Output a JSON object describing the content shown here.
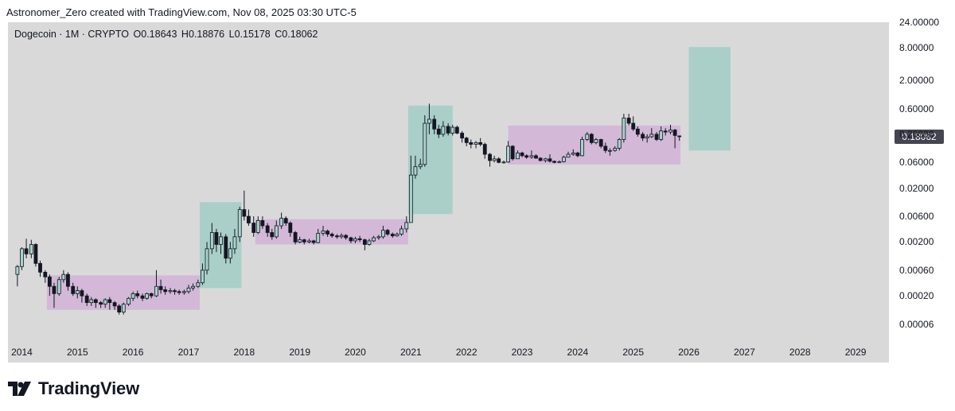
{
  "header": {
    "text": "Astronomer_Zero created with TradingView.com, Nov 08, 2025 03:30 UTC-5"
  },
  "legend": {
    "symbol": "Dogecoin · 1M · CRYPTO",
    "open": "O0.18643",
    "high": "H0.18876",
    "low": "L0.15178",
    "close": "C0.18062"
  },
  "brand": {
    "name": "TradingView"
  },
  "colors": {
    "background": "#d9d9d9",
    "accumulation_box": "#d3b8d8",
    "expansion_box": "#a9cfc8",
    "candle_up": "#a8d3cc",
    "candle_down": "#131722",
    "price_badge": "#434651"
  },
  "chart_data": {
    "type": "candlestick",
    "scale": "log",
    "ylim": [
      3e-05,
      24
    ],
    "y_ticks": [
      "24.00000",
      "8.00000",
      "2.00000",
      "0.60000",
      "0.20000",
      "0.06000",
      "0.02000",
      "0.00600",
      "0.00200",
      "0.00060",
      "0.00020",
      "0.00006"
    ],
    "x_ticks": [
      "2014",
      "2015",
      "2016",
      "2017",
      "2018",
      "2019",
      "2020",
      "2021",
      "2022",
      "2023",
      "2024",
      "2025",
      "2026",
      "2027",
      "2028",
      "2029"
    ],
    "xlim": [
      2013.75,
      2029.6
    ],
    "last_price": "0.18062",
    "zones": [
      {
        "kind": "accumulation",
        "x": [
          2014.45,
          2017.2
        ],
        "y": [
          0.00011,
          0.00048
        ]
      },
      {
        "kind": "expansion",
        "x": [
          2017.2,
          2017.95
        ],
        "y": [
          0.00028,
          0.011
        ]
      },
      {
        "kind": "accumulation",
        "x": [
          2018.2,
          2020.95
        ],
        "y": [
          0.0018,
          0.0053
        ]
      },
      {
        "kind": "expansion",
        "x": [
          2020.95,
          2021.75
        ],
        "y": [
          0.0066,
          0.68
        ]
      },
      {
        "kind": "accumulation",
        "x": [
          2022.75,
          2025.85
        ],
        "y": [
          0.055,
          0.29
        ]
      },
      {
        "kind": "expansion",
        "x": [
          2026.0,
          2026.75
        ],
        "y": [
          0.1,
          8.3
        ]
      }
    ],
    "candles": [
      [
        2013.92,
        0.0005,
        0.0007,
        0.00075,
        0.0003
      ],
      [
        2014.0,
        0.0007,
        0.0015,
        0.0016,
        0.0006
      ],
      [
        2014.08,
        0.0015,
        0.0012,
        0.0023,
        0.001
      ],
      [
        2014.17,
        0.0012,
        0.0018,
        0.0022,
        0.001
      ],
      [
        2014.25,
        0.0018,
        0.0008,
        0.0019,
        0.0007
      ],
      [
        2014.33,
        0.0008,
        0.00055,
        0.0009,
        0.00045
      ],
      [
        2014.42,
        0.00055,
        0.00045,
        0.0006,
        0.00035
      ],
      [
        2014.5,
        0.00045,
        0.0003,
        0.0005,
        0.0002
      ],
      [
        2014.58,
        0.0003,
        0.00022,
        0.00035,
        0.00012
      ],
      [
        2014.67,
        0.00022,
        0.0004,
        0.00045,
        0.0002
      ],
      [
        2014.75,
        0.0004,
        0.0005,
        0.0006,
        0.00035
      ],
      [
        2014.83,
        0.0005,
        0.0003,
        0.00055,
        0.00025
      ],
      [
        2014.92,
        0.0003,
        0.00022,
        0.00035,
        0.0002
      ],
      [
        2015.0,
        0.00022,
        0.00025,
        0.0003,
        0.00018
      ],
      [
        2015.08,
        0.00025,
        0.0002,
        0.00027,
        0.00015
      ],
      [
        2015.17,
        0.0002,
        0.00015,
        0.00022,
        0.00013
      ],
      [
        2015.25,
        0.00015,
        0.00017,
        0.00019,
        0.00013
      ],
      [
        2015.33,
        0.00017,
        0.00015,
        0.00018,
        0.00012
      ],
      [
        2015.42,
        0.00015,
        0.00014,
        0.00016,
        0.00012
      ],
      [
        2015.5,
        0.00014,
        0.00017,
        0.00018,
        0.00012
      ],
      [
        2015.58,
        0.00017,
        0.00015,
        0.00019,
        0.00011
      ],
      [
        2015.67,
        0.00015,
        0.00013,
        0.00016,
        0.00011
      ],
      [
        2015.75,
        0.00013,
        0.0001,
        0.00014,
        9e-05
      ],
      [
        2015.83,
        0.0001,
        0.00014,
        0.00015,
        9e-05
      ],
      [
        2015.92,
        0.00014,
        0.00018,
        0.00019,
        0.00013
      ],
      [
        2016.0,
        0.00018,
        0.00022,
        0.00024,
        0.00016
      ],
      [
        2016.08,
        0.00022,
        0.0002,
        0.00025,
        0.00018
      ],
      [
        2016.17,
        0.0002,
        0.00018,
        0.00022,
        0.00016
      ],
      [
        2016.25,
        0.00018,
        0.00022,
        0.00023,
        0.00017
      ],
      [
        2016.33,
        0.00022,
        0.0002,
        0.00023,
        0.00018
      ],
      [
        2016.42,
        0.0002,
        0.0003,
        0.0006,
        0.00019
      ],
      [
        2016.5,
        0.0003,
        0.00026,
        0.0004,
        0.00022
      ],
      [
        2016.58,
        0.00026,
        0.00024,
        0.0003,
        0.00021
      ],
      [
        2016.67,
        0.00024,
        0.00025,
        0.00028,
        0.00022
      ],
      [
        2016.75,
        0.00025,
        0.00024,
        0.00027,
        0.00021
      ],
      [
        2016.83,
        0.00024,
        0.00023,
        0.00026,
        0.00021
      ],
      [
        2016.92,
        0.00023,
        0.00024,
        0.00026,
        0.00021
      ],
      [
        2017.0,
        0.00024,
        0.00028,
        0.00032,
        0.00022
      ],
      [
        2017.08,
        0.00028,
        0.0003,
        0.00034,
        0.00025
      ],
      [
        2017.17,
        0.0003,
        0.00035,
        0.0004,
        0.00028
      ],
      [
        2017.25,
        0.00035,
        0.0006,
        0.0008,
        0.00032
      ],
      [
        2017.33,
        0.0006,
        0.0015,
        0.002,
        0.0005
      ],
      [
        2017.42,
        0.0015,
        0.003,
        0.0045,
        0.0012
      ],
      [
        2017.5,
        0.003,
        0.0018,
        0.0035,
        0.0013
      ],
      [
        2017.58,
        0.0018,
        0.0025,
        0.003,
        0.0012
      ],
      [
        2017.67,
        0.0025,
        0.001,
        0.0028,
        0.0008
      ],
      [
        2017.75,
        0.001,
        0.0015,
        0.002,
        0.0008
      ],
      [
        2017.83,
        0.0015,
        0.0025,
        0.0035,
        0.0012
      ],
      [
        2017.92,
        0.0025,
        0.008,
        0.009,
        0.002
      ],
      [
        2018.0,
        0.008,
        0.006,
        0.018,
        0.005
      ],
      [
        2018.08,
        0.006,
        0.0045,
        0.008,
        0.004
      ],
      [
        2018.17,
        0.0045,
        0.003,
        0.006,
        0.0025
      ],
      [
        2018.25,
        0.003,
        0.005,
        0.006,
        0.0028
      ],
      [
        2018.33,
        0.005,
        0.004,
        0.006,
        0.0035
      ],
      [
        2018.42,
        0.004,
        0.003,
        0.0045,
        0.0025
      ],
      [
        2018.5,
        0.003,
        0.0025,
        0.0035,
        0.0022
      ],
      [
        2018.58,
        0.0025,
        0.004,
        0.005,
        0.0023
      ],
      [
        2018.67,
        0.004,
        0.0055,
        0.007,
        0.0035
      ],
      [
        2018.75,
        0.0055,
        0.0045,
        0.006,
        0.004
      ],
      [
        2018.83,
        0.0045,
        0.003,
        0.0048,
        0.0025
      ],
      [
        2018.92,
        0.003,
        0.002,
        0.0032,
        0.0018
      ],
      [
        2019.0,
        0.002,
        0.0022,
        0.0025,
        0.0019
      ],
      [
        2019.08,
        0.0022,
        0.002,
        0.0023,
        0.0018
      ],
      [
        2019.17,
        0.002,
        0.0021,
        0.0023,
        0.0019
      ],
      [
        2019.25,
        0.0021,
        0.00195,
        0.0022,
        0.0018
      ],
      [
        2019.33,
        0.00195,
        0.0029,
        0.0035,
        0.0019
      ],
      [
        2019.42,
        0.0029,
        0.0032,
        0.004,
        0.0026
      ],
      [
        2019.5,
        0.0032,
        0.0028,
        0.0034,
        0.0025
      ],
      [
        2019.58,
        0.0028,
        0.0026,
        0.003,
        0.0024
      ],
      [
        2019.67,
        0.0026,
        0.0025,
        0.0028,
        0.0023
      ],
      [
        2019.75,
        0.0025,
        0.00265,
        0.0029,
        0.0023
      ],
      [
        2019.83,
        0.00265,
        0.0024,
        0.0028,
        0.0022
      ],
      [
        2019.92,
        0.0024,
        0.0021,
        0.0025,
        0.0019
      ],
      [
        2020.0,
        0.0021,
        0.0023,
        0.0025,
        0.0019
      ],
      [
        2020.08,
        0.0023,
        0.0022,
        0.0026,
        0.002
      ],
      [
        2020.17,
        0.0022,
        0.0018,
        0.0023,
        0.0014
      ],
      [
        2020.25,
        0.0018,
        0.0021,
        0.0023,
        0.0017
      ],
      [
        2020.33,
        0.0021,
        0.0024,
        0.0026,
        0.002
      ],
      [
        2020.42,
        0.0024,
        0.0025,
        0.0027,
        0.0022
      ],
      [
        2020.5,
        0.0025,
        0.0033,
        0.004,
        0.0023
      ],
      [
        2020.58,
        0.0033,
        0.0028,
        0.0035,
        0.0026
      ],
      [
        2020.67,
        0.0028,
        0.0026,
        0.003,
        0.0024
      ],
      [
        2020.75,
        0.0026,
        0.0028,
        0.003,
        0.0025
      ],
      [
        2020.83,
        0.0028,
        0.0035,
        0.004,
        0.0026
      ],
      [
        2020.92,
        0.0035,
        0.0046,
        0.006,
        0.003
      ],
      [
        2021.0,
        0.0046,
        0.035,
        0.08,
        0.005
      ],
      [
        2021.08,
        0.035,
        0.05,
        0.08,
        0.03
      ],
      [
        2021.17,
        0.05,
        0.055,
        0.07,
        0.045
      ],
      [
        2021.25,
        0.055,
        0.32,
        0.45,
        0.05
      ],
      [
        2021.33,
        0.32,
        0.38,
        0.74,
        0.2
      ],
      [
        2021.42,
        0.38,
        0.25,
        0.45,
        0.2
      ],
      [
        2021.5,
        0.25,
        0.2,
        0.3,
        0.17
      ],
      [
        2021.58,
        0.2,
        0.28,
        0.35,
        0.18
      ],
      [
        2021.67,
        0.28,
        0.21,
        0.32,
        0.19
      ],
      [
        2021.75,
        0.21,
        0.27,
        0.3,
        0.19
      ],
      [
        2021.83,
        0.27,
        0.21,
        0.29,
        0.2
      ],
      [
        2021.92,
        0.21,
        0.17,
        0.23,
        0.14
      ],
      [
        2022.0,
        0.17,
        0.14,
        0.18,
        0.12
      ],
      [
        2022.08,
        0.14,
        0.13,
        0.16,
        0.11
      ],
      [
        2022.17,
        0.13,
        0.14,
        0.15,
        0.11
      ],
      [
        2022.25,
        0.14,
        0.13,
        0.17,
        0.12
      ],
      [
        2022.33,
        0.13,
        0.085,
        0.14,
        0.07
      ],
      [
        2022.42,
        0.085,
        0.065,
        0.09,
        0.05
      ],
      [
        2022.5,
        0.065,
        0.07,
        0.08,
        0.06
      ],
      [
        2022.58,
        0.07,
        0.06,
        0.075,
        0.058
      ],
      [
        2022.67,
        0.06,
        0.061,
        0.065,
        0.057
      ],
      [
        2022.75,
        0.061,
        0.12,
        0.15,
        0.059
      ],
      [
        2022.83,
        0.12,
        0.07,
        0.125,
        0.065
      ],
      [
        2022.92,
        0.07,
        0.09,
        0.1,
        0.07
      ],
      [
        2023.0,
        0.09,
        0.08,
        0.095,
        0.075
      ],
      [
        2023.08,
        0.08,
        0.075,
        0.085,
        0.07
      ],
      [
        2023.17,
        0.075,
        0.08,
        0.1,
        0.07
      ],
      [
        2023.25,
        0.08,
        0.072,
        0.085,
        0.07
      ],
      [
        2023.33,
        0.072,
        0.065,
        0.075,
        0.063
      ],
      [
        2023.42,
        0.065,
        0.07,
        0.073,
        0.06
      ],
      [
        2023.5,
        0.07,
        0.063,
        0.085,
        0.06
      ],
      [
        2023.58,
        0.063,
        0.06,
        0.065,
        0.058
      ],
      [
        2023.67,
        0.06,
        0.062,
        0.065,
        0.059
      ],
      [
        2023.75,
        0.062,
        0.075,
        0.08,
        0.06
      ],
      [
        2023.83,
        0.075,
        0.085,
        0.095,
        0.075
      ],
      [
        2023.92,
        0.085,
        0.09,
        0.105,
        0.08
      ],
      [
        2024.0,
        0.09,
        0.08,
        0.095,
        0.075
      ],
      [
        2024.08,
        0.08,
        0.16,
        0.18,
        0.078
      ],
      [
        2024.17,
        0.16,
        0.2,
        0.22,
        0.15
      ],
      [
        2024.25,
        0.2,
        0.14,
        0.21,
        0.13
      ],
      [
        2024.33,
        0.14,
        0.16,
        0.17,
        0.13
      ],
      [
        2024.42,
        0.16,
        0.12,
        0.165,
        0.11
      ],
      [
        2024.5,
        0.12,
        0.1,
        0.14,
        0.09
      ],
      [
        2024.58,
        0.1,
        0.1,
        0.11,
        0.08
      ],
      [
        2024.67,
        0.1,
        0.11,
        0.12,
        0.095
      ],
      [
        2024.75,
        0.11,
        0.16,
        0.17,
        0.1
      ],
      [
        2024.83,
        0.16,
        0.4,
        0.48,
        0.14
      ],
      [
        2024.92,
        0.4,
        0.32,
        0.48,
        0.29
      ],
      [
        2025.0,
        0.32,
        0.25,
        0.43,
        0.23
      ],
      [
        2025.08,
        0.25,
        0.2,
        0.28,
        0.18
      ],
      [
        2025.17,
        0.2,
        0.17,
        0.22,
        0.15
      ],
      [
        2025.25,
        0.17,
        0.18,
        0.2,
        0.14
      ],
      [
        2025.33,
        0.18,
        0.2,
        0.26,
        0.17
      ],
      [
        2025.42,
        0.2,
        0.16,
        0.22,
        0.15
      ],
      [
        2025.5,
        0.16,
        0.23,
        0.28,
        0.15
      ],
      [
        2025.58,
        0.23,
        0.22,
        0.26,
        0.19
      ],
      [
        2025.67,
        0.22,
        0.24,
        0.3,
        0.2
      ],
      [
        2025.75,
        0.24,
        0.19,
        0.25,
        0.11
      ],
      [
        2025.83,
        0.18643,
        0.18062,
        0.18876,
        0.15178
      ]
    ]
  }
}
